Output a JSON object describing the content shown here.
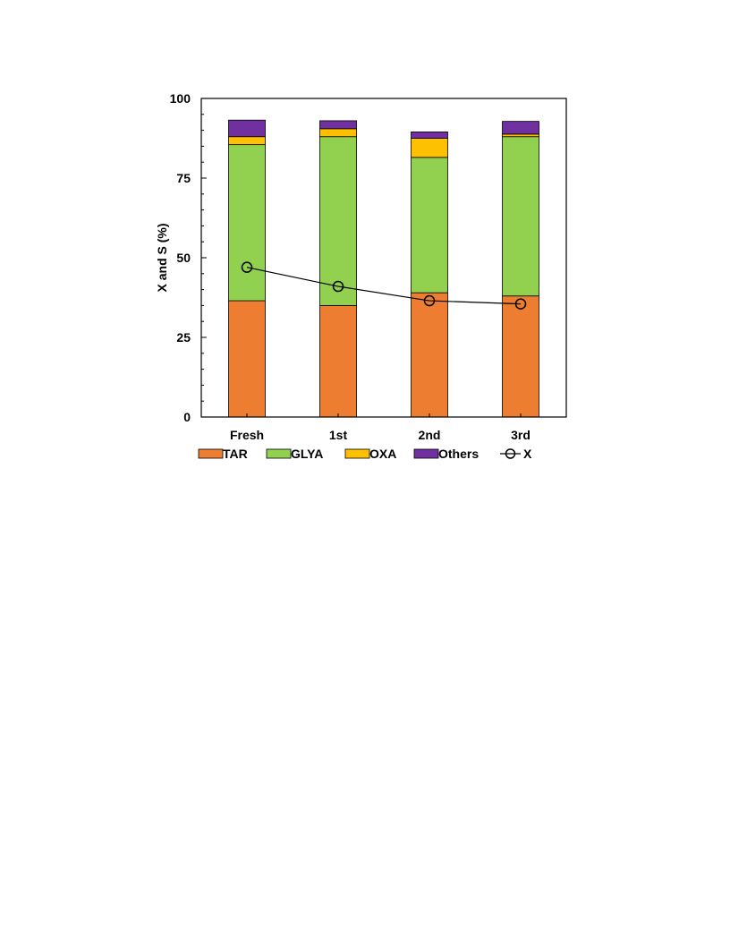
{
  "chart_data": {
    "type": "bar",
    "stacked": true,
    "categories": [
      "Fresh",
      "1st",
      "2nd",
      "3rd"
    ],
    "ylabel": "X and S (%)",
    "ylim": [
      0,
      100
    ],
    "yticks": [
      0,
      25,
      50,
      75,
      100
    ],
    "grid": "horizontal",
    "legend_position": "bottom",
    "series": [
      {
        "name": "TAR",
        "kind": "bar",
        "color": "#ED7D31",
        "values": [
          36.5,
          35.0,
          39.0,
          38.0
        ]
      },
      {
        "name": "GLYA",
        "kind": "bar",
        "color": "#92D050",
        "values": [
          49.0,
          53.0,
          42.5,
          50.0
        ]
      },
      {
        "name": "OXA",
        "kind": "bar",
        "color": "#FFC000",
        "values": [
          2.5,
          2.5,
          6.0,
          0.8
        ]
      },
      {
        "name": "Others",
        "kind": "bar",
        "color": "#7030A0",
        "values": [
          5.2,
          2.5,
          2.0,
          4.0
        ]
      },
      {
        "name": "X",
        "kind": "line",
        "color": "#000000",
        "marker": "open-circle",
        "values": [
          47.0,
          41.0,
          36.5,
          35.5
        ]
      }
    ]
  }
}
